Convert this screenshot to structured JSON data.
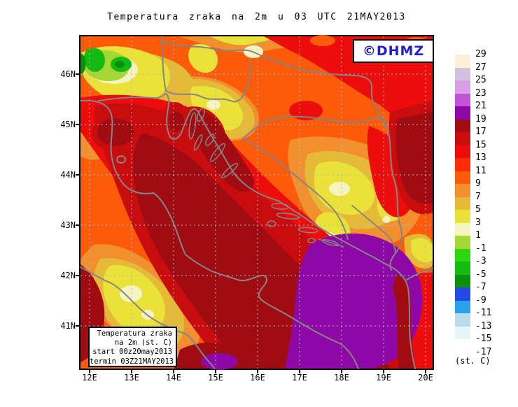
{
  "title": "Temperatura zraka na 2m u 03 UTC 21MAY2013",
  "watermark": {
    "label": "©DHMZ",
    "color": "#1f1fd0"
  },
  "info_box": {
    "lines": [
      "Temperatura zraka",
      "na 2m (st. C)",
      "start 00z20may2013",
      "termin 03Z21MAY2013"
    ]
  },
  "axes": {
    "x_tick_labels": [
      "12E",
      "13E",
      "14E",
      "15E",
      "16E",
      "17E",
      "18E",
      "19E",
      "20E"
    ],
    "y_tick_labels": [
      "46N",
      "45N",
      "44N",
      "43N",
      "42N",
      "41N"
    ]
  },
  "colorbar": {
    "unit_label": "(st. C)",
    "tick_labels": [
      "29",
      "27",
      "25",
      "23",
      "21",
      "19",
      "17",
      "15",
      "13",
      "11",
      "9",
      "7",
      "5",
      "3",
      "1",
      "-1",
      "-3",
      "-5",
      "-7",
      "-9",
      "-11",
      "-13",
      "-15",
      "-17"
    ],
    "colors": [
      "#fdeed6",
      "#d0c2dc",
      "#daa0e6",
      "#c253d6",
      "#8e07a7",
      "#a10c12",
      "#c90d0e",
      "#ec0d0c",
      "#fd2b06",
      "#fc5c09",
      "#f28f2e",
      "#e5ba39",
      "#eae239",
      "#f5f3c2",
      "#a6d835",
      "#2ed60f",
      "#13ba13",
      "#0b900b",
      "#2449e4",
      "#2aa0e8",
      "#badceb",
      "#e4f6fb",
      "#ffffff"
    ]
  },
  "style": {
    "grid_color": "#a8bcc6",
    "coast_color": "#858585",
    "frame_color": "#000000"
  }
}
